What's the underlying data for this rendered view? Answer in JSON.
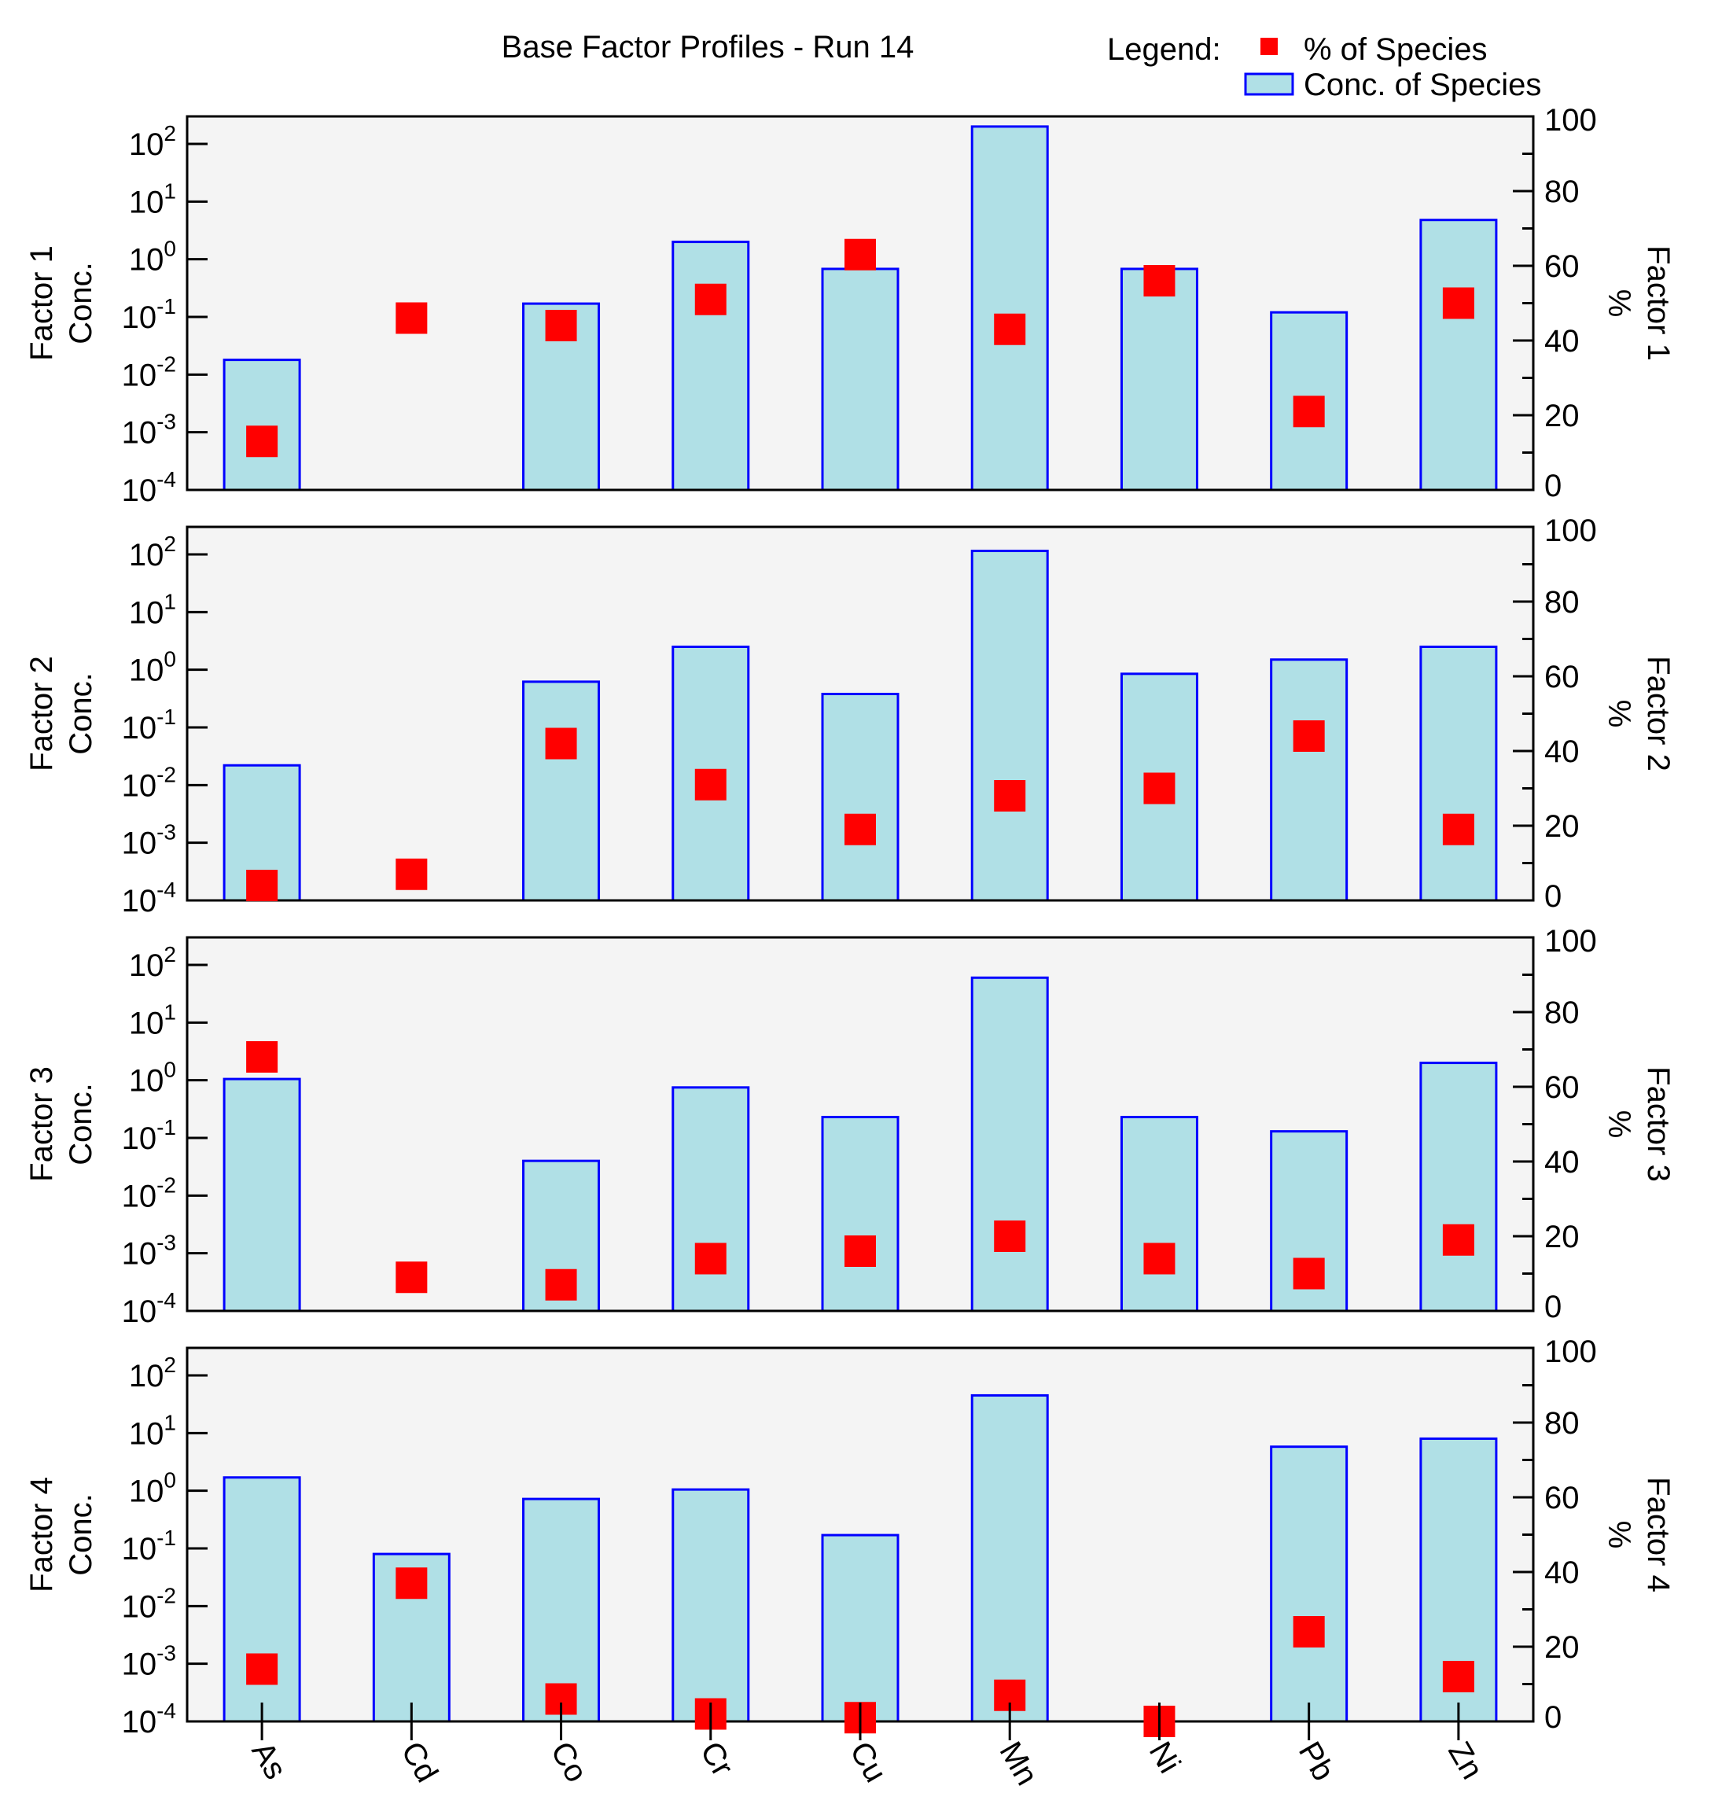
{
  "chart_data": {
    "type": "bar",
    "title": "Base Factor Profiles - Run 14",
    "legend": {
      "label": "Legend:",
      "entries": [
        {
          "name": "% of Species",
          "marker": "square",
          "color": "#ff0000"
        },
        {
          "name": "Conc. of Species",
          "marker": "bar",
          "color": "#b0e0e6",
          "edge": "#0000ff"
        }
      ],
      "placement": "top-right"
    },
    "categories": [
      "As",
      "Cd",
      "Co",
      "Cr",
      "Cu",
      "Mn",
      "Ni",
      "Pb",
      "Zn"
    ],
    "left_axis": {
      "scale": "log",
      "range": [
        0.0001,
        300
      ],
      "ticks": [
        {
          "base": "10",
          "exp": "2"
        },
        {
          "base": "10",
          "exp": "1"
        },
        {
          "base": "10",
          "exp": "0"
        },
        {
          "base": "10",
          "exp": "-1"
        },
        {
          "base": "10",
          "exp": "-2"
        },
        {
          "base": "10",
          "exp": "-3"
        },
        {
          "base": "10",
          "exp": "-4"
        }
      ]
    },
    "right_axis": {
      "scale": "linear",
      "range": [
        0,
        100
      ],
      "ticks": [
        "0",
        "20",
        "40",
        "60",
        "80",
        "100"
      ],
      "label": "%"
    },
    "panels": [
      {
        "name": "Factor 1",
        "ylabel": [
          "Factor 1",
          "Conc."
        ],
        "right_label": "Factor 1",
        "conc": [
          0.018,
          null,
          0.17,
          2.0,
          0.68,
          200,
          0.68,
          0.12,
          4.8
        ],
        "percent": [
          13,
          46,
          44,
          51,
          63,
          43,
          56,
          21,
          50
        ]
      },
      {
        "name": "Factor 2",
        "ylabel": [
          "Factor 2",
          "Conc."
        ],
        "right_label": "Factor 2",
        "conc": [
          0.022,
          null,
          0.62,
          2.5,
          0.38,
          115,
          0.85,
          1.5,
          2.5
        ],
        "percent": [
          4,
          7,
          42,
          31,
          19,
          28,
          30,
          44,
          19
        ]
      },
      {
        "name": "Factor 3",
        "ylabel": [
          "Factor 3",
          "Conc."
        ],
        "right_label": "Factor 3",
        "conc": [
          1.05,
          null,
          0.04,
          0.75,
          0.23,
          60,
          0.23,
          0.13,
          2.0
        ],
        "percent": [
          68,
          9,
          7,
          14,
          16,
          20,
          14,
          10,
          19
        ]
      },
      {
        "name": "Factor 4",
        "ylabel": [
          "Factor 4",
          "Conc."
        ],
        "right_label": "Factor 4",
        "conc": [
          1.7,
          0.08,
          0.72,
          1.05,
          0.17,
          45,
          null,
          5.8,
          8.0
        ],
        "percent": [
          14,
          37,
          6,
          2,
          1,
          7,
          0,
          24,
          12
        ]
      }
    ]
  }
}
